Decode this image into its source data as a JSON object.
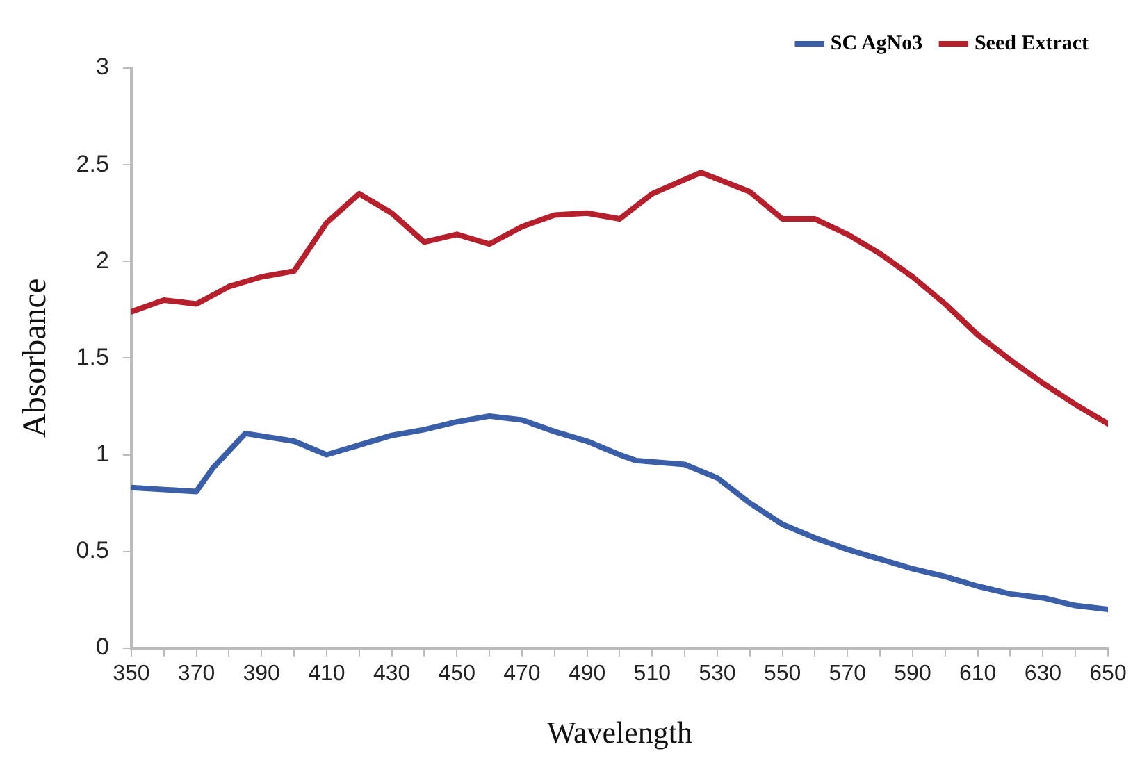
{
  "chart_data": {
    "type": "line",
    "xlabel": "Wavelength",
    "ylabel": "Absorbance",
    "legend": "top right",
    "grid": false,
    "marker": "none",
    "line_style": "solid",
    "xlim": [
      350,
      650
    ],
    "ylim": [
      0,
      3
    ],
    "xticks": [
      350,
      {
        "value": 360,
        "label": null
      },
      370,
      {
        "value": 380,
        "label": null
      },
      390,
      {
        "value": 400,
        "label": null
      },
      410,
      {
        "value": 420,
        "label": null
      },
      430,
      {
        "value": 440,
        "label": null
      },
      450,
      {
        "value": 460,
        "label": null
      },
      470,
      {
        "value": 480,
        "label": null
      },
      490,
      {
        "value": 500,
        "label": null
      },
      510,
      {
        "value": 520,
        "label": null
      },
      530,
      {
        "value": 540,
        "label": null
      },
      550,
      {
        "value": 560,
        "label": null
      },
      570,
      {
        "value": 580,
        "label": null
      },
      590,
      {
        "value": 600,
        "label": null
      },
      610,
      {
        "value": 620,
        "label": null
      },
      630,
      {
        "value": 640,
        "label": null
      },
      650
    ],
    "yticks": [
      0,
      0.5,
      1,
      1.5,
      2,
      2.5,
      3
    ],
    "series": [
      {
        "name": "SC AgNo3",
        "color": "#3a5ea8",
        "x": [
          350,
          360,
          370,
          375,
          385,
          400,
          410,
          420,
          430,
          440,
          450,
          460,
          470,
          480,
          490,
          500,
          505,
          520,
          530,
          540,
          550,
          560,
          570,
          580,
          590,
          600,
          610,
          620,
          630,
          640,
          650
        ],
        "values": [
          0.83,
          0.82,
          0.81,
          0.93,
          1.11,
          1.07,
          1.0,
          1.05,
          1.1,
          1.13,
          1.17,
          1.2,
          1.18,
          1.12,
          1.07,
          1.0,
          0.97,
          0.95,
          0.88,
          0.75,
          0.64,
          0.57,
          0.51,
          0.46,
          0.41,
          0.37,
          0.32,
          0.28,
          0.26,
          0.22,
          0.2
        ]
      },
      {
        "name": "Seed Extract",
        "color": "#b5202c",
        "x": [
          350,
          360,
          370,
          380,
          390,
          400,
          410,
          420,
          430,
          440,
          450,
          460,
          470,
          480,
          490,
          500,
          510,
          525,
          540,
          550,
          560,
          570,
          580,
          590,
          600,
          610,
          620,
          630,
          640,
          650
        ],
        "values": [
          1.74,
          1.8,
          1.78,
          1.87,
          1.92,
          1.95,
          2.2,
          2.35,
          2.25,
          2.1,
          2.14,
          2.09,
          2.18,
          2.24,
          2.25,
          2.22,
          2.35,
          2.46,
          2.36,
          2.22,
          2.22,
          2.14,
          2.04,
          1.92,
          1.78,
          1.62,
          1.49,
          1.37,
          1.26,
          1.16
        ]
      }
    ]
  }
}
